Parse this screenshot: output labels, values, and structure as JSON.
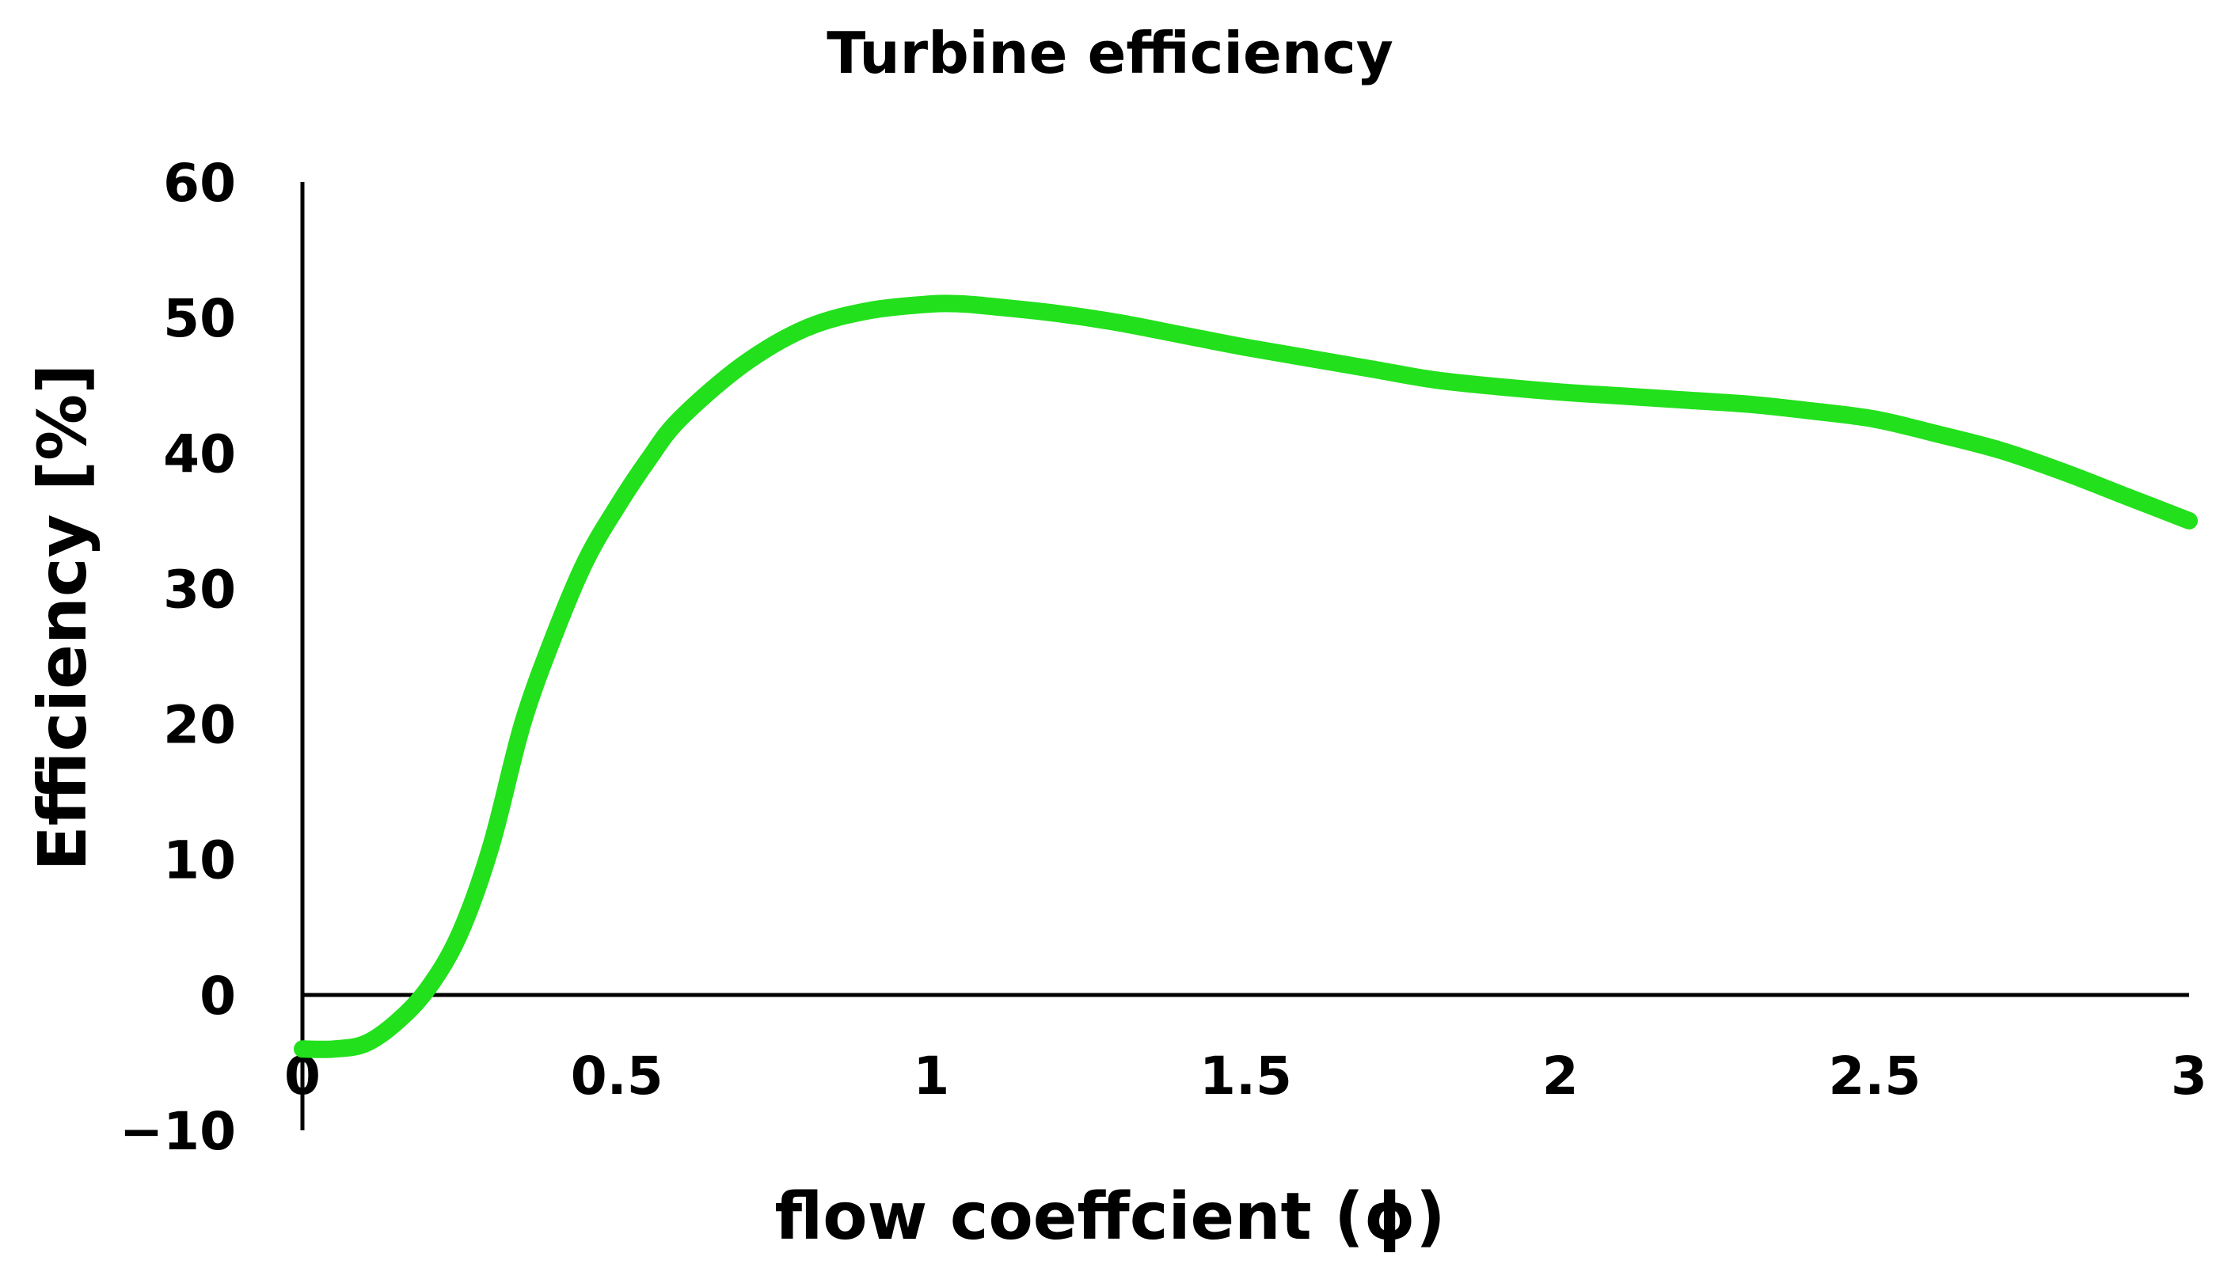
{
  "chart_data": {
    "type": "line",
    "title": "Turbine efficiency",
    "xlabel": "flow coeffcient (ϕ)",
    "ylabel": "Efficiency  [%]",
    "xlim": [
      0,
      3
    ],
    "ylim": [
      -10,
      60
    ],
    "x_ticks": [
      {
        "value": 0,
        "label": "0"
      },
      {
        "value": 0.5,
        "label": "0.5"
      },
      {
        "value": 1,
        "label": "1"
      },
      {
        "value": 1.5,
        "label": "1.5"
      },
      {
        "value": 2,
        "label": "2"
      },
      {
        "value": 2.5,
        "label": "2.5"
      },
      {
        "value": 3,
        "label": "3"
      }
    ],
    "y_ticks": [
      {
        "value": -10,
        "label": "−10"
      },
      {
        "value": 0,
        "label": "0"
      },
      {
        "value": 10,
        "label": "10"
      },
      {
        "value": 20,
        "label": "20"
      },
      {
        "value": 30,
        "label": "30"
      },
      {
        "value": 40,
        "label": "40"
      },
      {
        "value": 50,
        "label": "50"
      },
      {
        "value": 60,
        "label": "60"
      }
    ],
    "grid": false,
    "legend": "none",
    "series": [
      {
        "name": "Turbine efficiency",
        "color": "#22e01c",
        "x": [
          0,
          0.05,
          0.1,
          0.15,
          0.2,
          0.25,
          0.3,
          0.35,
          0.4,
          0.45,
          0.5,
          0.55,
          0.6,
          0.7,
          0.8,
          0.9,
          1.0,
          1.05,
          1.1,
          1.2,
          1.3,
          1.4,
          1.5,
          1.6,
          1.7,
          1.8,
          1.9,
          2.0,
          2.1,
          2.2,
          2.3,
          2.4,
          2.5,
          2.6,
          2.7,
          2.8,
          2.9,
          3.0
        ],
        "y": [
          -4,
          -4,
          -3.6,
          -2,
          0.5,
          4.5,
          11,
          20,
          26.5,
          32,
          36,
          39.5,
          42.5,
          46.5,
          49.2,
          50.5,
          51,
          51,
          50.8,
          50.3,
          49.6,
          48.7,
          47.8,
          47,
          46.2,
          45.4,
          44.9,
          44.5,
          44.2,
          43.9,
          43.6,
          43.1,
          42.5,
          41.4,
          40.2,
          38.6,
          36.8,
          35
        ]
      }
    ]
  }
}
